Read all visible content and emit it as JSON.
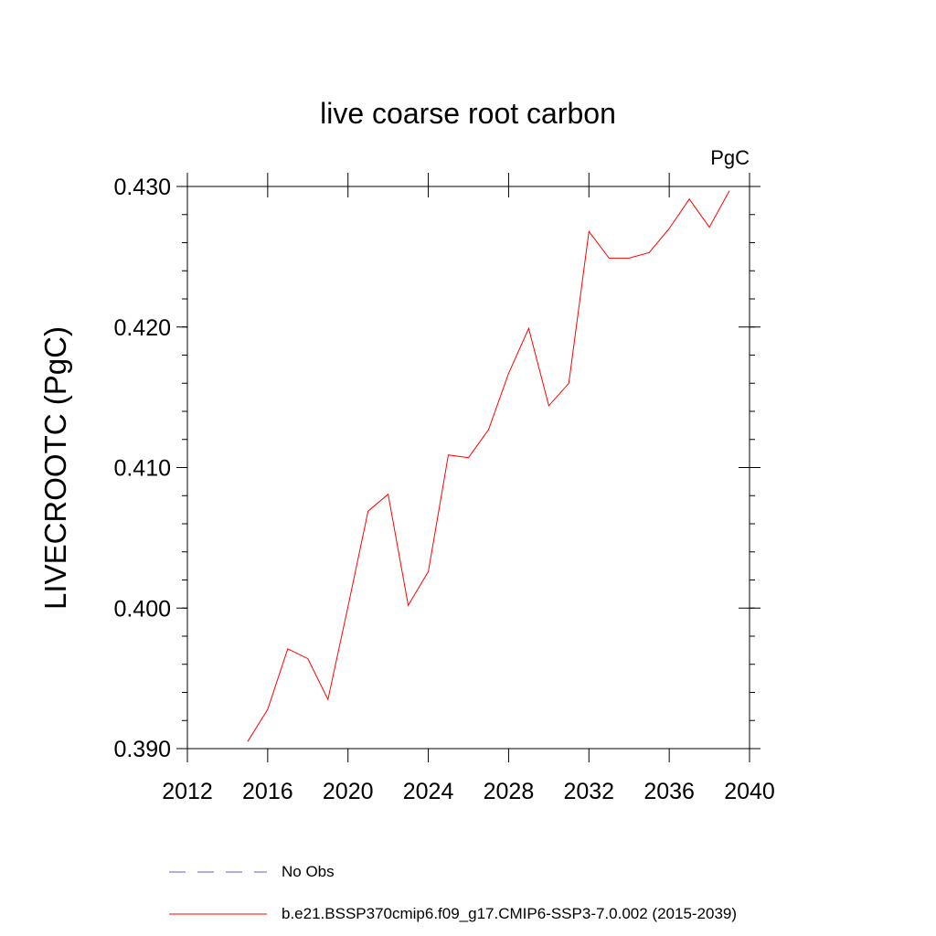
{
  "chart_data": {
    "type": "line",
    "title": "live coarse root carbon",
    "units_label": "PgC",
    "xlabel": "",
    "ylabel": "LIVECROOTC  (PgC)",
    "xlim": [
      2012,
      2040
    ],
    "ylim": [
      0.39,
      0.43
    ],
    "x_ticks": [
      2012,
      2016,
      2020,
      2024,
      2028,
      2032,
      2036,
      2040
    ],
    "x_tick_labels": [
      "2012",
      "2016",
      "2020",
      "2024",
      "2028",
      "2032",
      "2036",
      "2040"
    ],
    "y_ticks": [
      0.39,
      0.4,
      0.41,
      0.42,
      0.43
    ],
    "y_tick_labels": [
      "0.390",
      "0.400",
      "0.410",
      "0.420",
      "0.430"
    ],
    "grid": false,
    "legend_position": "bottom",
    "series": [
      {
        "name": "b.e21.BSSP370cmip6.f09_g17.CMIP6-SSP3-7.0.002 (2015-2039)",
        "color": "#ff0000",
        "style": "solid",
        "x": [
          2015,
          2016,
          2017,
          2018,
          2019,
          2020,
          2021,
          2022,
          2023,
          2024,
          2025,
          2026,
          2027,
          2028,
          2029,
          2030,
          2031,
          2032,
          2033,
          2034,
          2035,
          2036,
          2037,
          2038,
          2039
        ],
        "y": [
          0.3905,
          0.3928,
          0.3971,
          0.3964,
          0.3935,
          0.4001,
          0.4069,
          0.4081,
          0.4002,
          0.4026,
          0.4109,
          0.4107,
          0.4127,
          0.4167,
          0.4199,
          0.4144,
          0.416,
          0.4268,
          0.4249,
          0.4249,
          0.4253,
          0.427,
          0.4291,
          0.4271,
          0.4297
        ]
      }
    ],
    "legend": [
      {
        "label": "No Obs",
        "color": "#6a5acd",
        "style": "dashed"
      },
      {
        "label": "b.e21.BSSP370cmip6.f09_g17.CMIP6-SSP3-7.0.002 (2015-2039)",
        "color": "#ff0000",
        "style": "solid"
      }
    ]
  }
}
